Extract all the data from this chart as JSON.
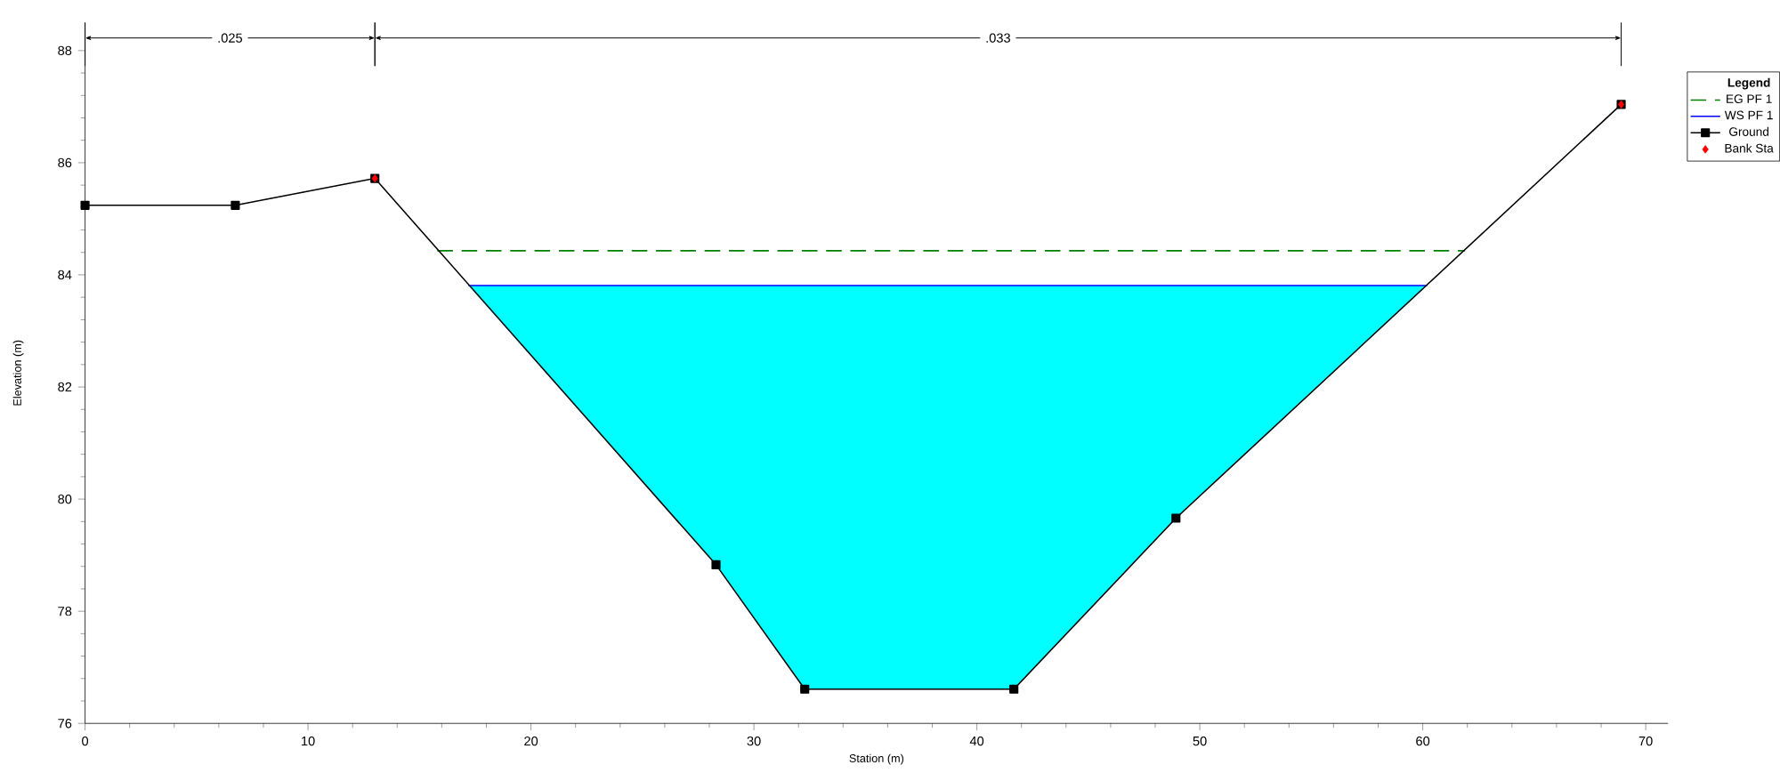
{
  "chart_data": {
    "type": "line",
    "xlabel": "Station (m)",
    "ylabel": "Elevation (m)",
    "legend_title": "Legend",
    "legend": "right",
    "xlim": [
      0,
      71
    ],
    "ylim": [
      76,
      88.5
    ],
    "xticks": [
      0,
      10,
      20,
      30,
      40,
      50,
      60,
      70
    ],
    "yticks": [
      76,
      78,
      80,
      82,
      84,
      86,
      88
    ],
    "annotations": [
      ".025",
      ".033"
    ],
    "series": [
      {
        "name": "EG PF 1",
        "color": "#008000",
        "line_style": "dashed",
        "marker": "none",
        "x": [
          15.8,
          61.9
        ],
        "values": [
          84.43,
          84.43
        ]
      },
      {
        "name": "WS PF 1",
        "color": "#0000ff",
        "marker": "none",
        "x": [
          17.2,
          28.3,
          32.28,
          41.66,
          48.93,
          60.2
        ],
        "values": [
          83.81,
          83.81,
          83.81,
          83.81,
          83.81,
          83.81
        ],
        "lower": [
          83.81,
          78.83,
          76.61,
          76.61,
          79.66,
          83.81
        ],
        "upper": [
          83.81,
          83.81,
          83.81,
          83.81,
          83.81,
          83.81
        ]
      },
      {
        "name": "Ground",
        "color": "#000000",
        "marker": "square",
        "x": [
          0,
          6.74,
          13.0,
          28.3,
          32.28,
          41.66,
          48.93,
          68.9
        ],
        "values": [
          85.24,
          85.24,
          85.72,
          78.83,
          76.61,
          76.61,
          79.66,
          87.04
        ]
      },
      {
        "name": "Bank Sta",
        "type": "scatter",
        "color": "#ff0000",
        "marker": "diamond",
        "x": [
          13.0,
          68.9
        ],
        "values": [
          85.72,
          87.04
        ]
      }
    ]
  }
}
